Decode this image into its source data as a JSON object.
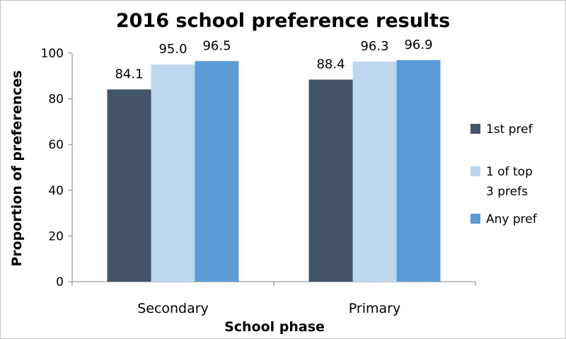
{
  "chart_data": {
    "type": "bar",
    "title": "2016 school preference results",
    "xlabel": "School phase",
    "ylabel": "Proportion of preferences",
    "categories": [
      "Secondary",
      "Primary"
    ],
    "ylim": [
      0,
      100
    ],
    "yticks": [
      "0",
      "20",
      "40",
      "60",
      "80",
      "100"
    ],
    "grid": false,
    "legend_position": "right",
    "series": [
      {
        "name": "1st pref",
        "legend_lines": [
          "1st pref"
        ],
        "color": "#44546a",
        "values": [
          84.1,
          88.4
        ],
        "labels": [
          "84.1",
          "88.4"
        ]
      },
      {
        "name": "1 of top 3 prefs",
        "legend_lines": [
          "1 of top",
          "3 prefs"
        ],
        "color": "#bdd7ee",
        "values": [
          95.0,
          96.3
        ],
        "labels": [
          "95.0",
          "96.3"
        ]
      },
      {
        "name": "Any pref",
        "legend_lines": [
          "Any pref"
        ],
        "color": "#5b9bd5",
        "values": [
          96.5,
          96.9
        ],
        "labels": [
          "96.5",
          "96.9"
        ]
      }
    ]
  }
}
